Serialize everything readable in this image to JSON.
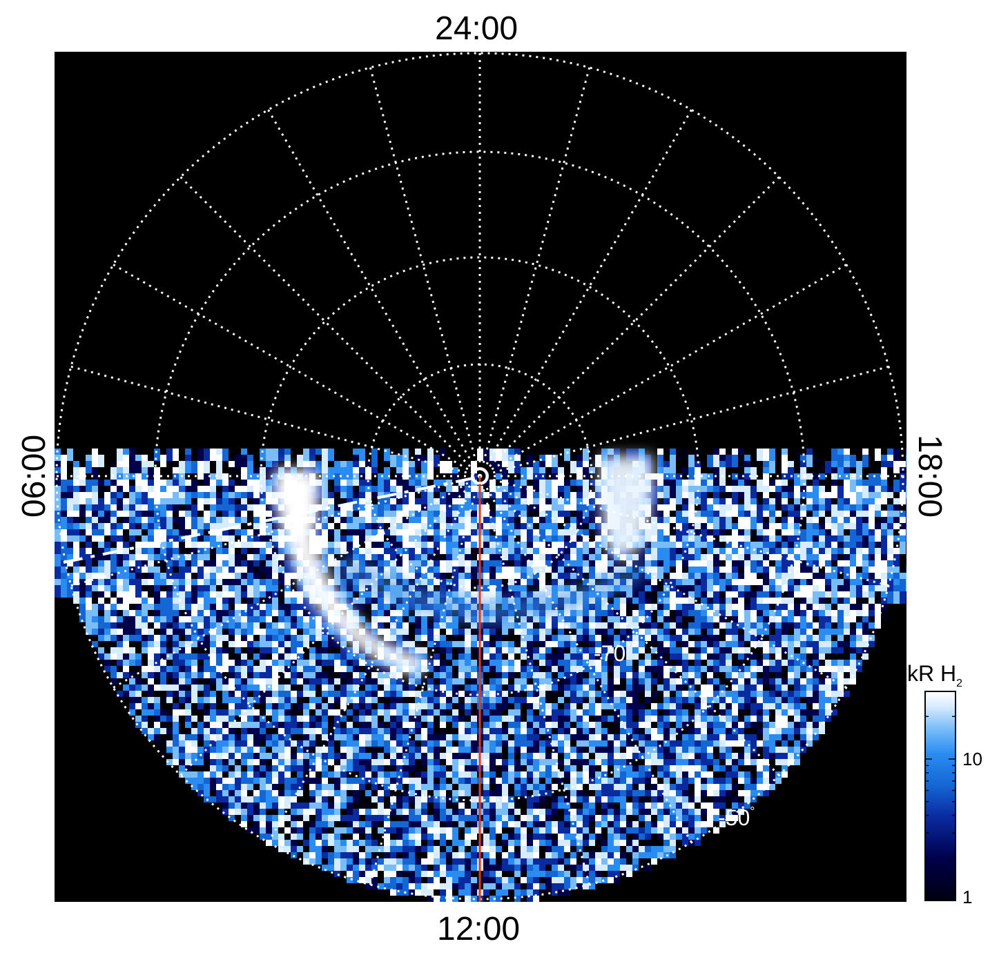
{
  "labels": {
    "top": "24:00",
    "bottom": "12:00",
    "left": "06:00",
    "right": "18:00"
  },
  "latitude_labels": {
    "inner": "-70",
    "outer": "-50",
    "degree_symbol": "°"
  },
  "colorbar": {
    "title_main": "kR H",
    "title_sub": "2",
    "tick_10": "10",
    "tick_1": "1",
    "scale": "log",
    "colors": [
      "#000010",
      "#00004a",
      "#0a2aa0",
      "#1466d4",
      "#2a8cf0",
      "#78bcf8",
      "#d8ecff",
      "#ffffff"
    ]
  },
  "colors": {
    "background": "#000000",
    "grid": "#ffffff",
    "meridian_line": "#d8401a",
    "page": "#ffffff"
  }
}
